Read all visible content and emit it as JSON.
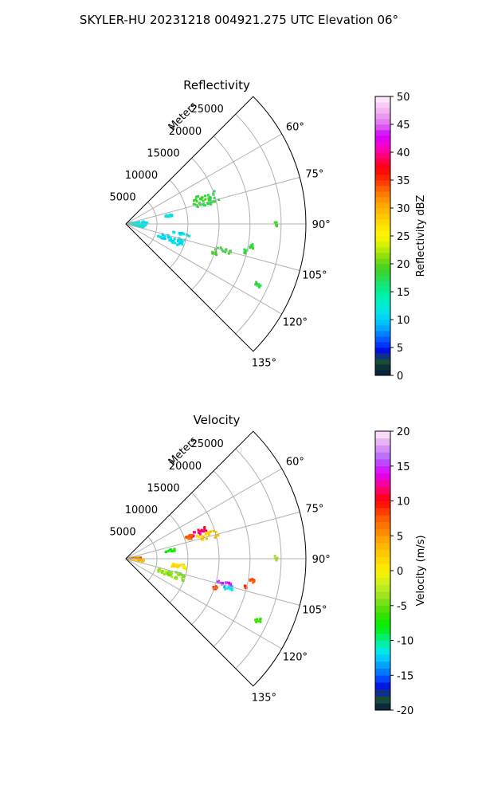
{
  "figure": {
    "title": "SKYLER-HU  20231218  004921.275 UTC Elevation 06°"
  },
  "chart_data": [
    {
      "type": "polar-sector",
      "title": "Reflectivity",
      "range_label": "Meters",
      "range_ticks": [
        5000,
        10000,
        15000,
        20000,
        25000
      ],
      "range_max": 29000,
      "azimuth_range_deg": [
        45,
        135
      ],
      "azimuth_ticks": [
        60,
        75,
        90,
        105,
        120,
        135
      ],
      "azimuth_tick_labels": [
        "60°",
        "75°",
        "90°",
        "105°",
        "120°",
        "135°"
      ],
      "grid": true,
      "colorbar": {
        "label": "Reflectivity dBZ",
        "min": 0,
        "max": 50,
        "step": 1,
        "ticks": [
          0,
          5,
          10,
          15,
          20,
          25,
          30,
          35,
          40,
          45,
          50
        ],
        "colormap": "NWSRef-like"
      },
      "echoes": [
        {
          "az": [
            69,
            77
          ],
          "r": [
            11000,
            15500
          ],
          "value": 18,
          "color": "#4cdb1e"
        },
        {
          "az": [
            78,
            81
          ],
          "r": [
            6500,
            8000
          ],
          "value": 11,
          "color": "#19c8e6"
        },
        {
          "az": [
            80,
            100
          ],
          "r": [
            200,
            3500
          ],
          "value": 12,
          "color": "#20d6e8"
        },
        {
          "az": [
            99,
            101
          ],
          "r": [
            7500,
            10500
          ],
          "value": 11,
          "color": "#2ad2f0"
        },
        {
          "az": [
            105,
            112
          ],
          "r": [
            5500,
            10000
          ],
          "value": 11,
          "color": "#20c4e8"
        },
        {
          "az": [
            104,
            106
          ],
          "r": [
            15000,
            17500
          ],
          "value": 18,
          "color": "#3bd42a"
        },
        {
          "az": [
            107,
            109
          ],
          "r": [
            14500,
            15500
          ],
          "value": 18,
          "color": "#3bd42a"
        },
        {
          "az": [
            99,
            101
          ],
          "r": [
            20300,
            21000
          ],
          "value": 18,
          "color": "#3bd42a"
        },
        {
          "az": [
            102,
            104
          ],
          "r": [
            19500,
            20000
          ],
          "value": 18,
          "color": "#3bd42a"
        },
        {
          "az": [
            89,
            91
          ],
          "r": [
            24000,
            24400
          ],
          "value": 18,
          "color": "#3bd42a"
        },
        {
          "az": [
            114,
            116
          ],
          "r": [
            23000,
            24000
          ],
          "value": 18,
          "color": "#3bd42a"
        }
      ]
    },
    {
      "type": "polar-sector",
      "title": "Velocity",
      "range_label": "Meters",
      "range_ticks": [
        5000,
        10000,
        15000,
        20000,
        25000
      ],
      "range_max": 29000,
      "azimuth_range_deg": [
        45,
        135
      ],
      "azimuth_ticks": [
        60,
        75,
        90,
        105,
        120,
        135
      ],
      "azimuth_tick_labels": [
        "60°",
        "75°",
        "90°",
        "105°",
        "120°",
        "135°"
      ],
      "grid": true,
      "colorbar": {
        "label": "Velocity (m/s)",
        "min": -20,
        "max": 20,
        "step": 1,
        "ticks": [
          -20,
          -15,
          -10,
          -5,
          0,
          5,
          10,
          15,
          20
        ],
        "colormap": "NWSVel-like"
      },
      "echoes": [
        {
          "az": [
            68,
            72
          ],
          "r": [
            11000,
            14000
          ],
          "value": 12,
          "color": "#ff1486"
        },
        {
          "az": [
            72,
            77
          ],
          "r": [
            12000,
            15500
          ],
          "value": 2,
          "color": "#ffd200"
        },
        {
          "az": [
            70,
            74
          ],
          "r": [
            10000,
            11500
          ],
          "value": 8,
          "color": "#ff5000"
        },
        {
          "az": [
            78,
            81
          ],
          "r": [
            6500,
            8000
          ],
          "value": -8,
          "color": "#2cd940"
        },
        {
          "az": [
            80,
            86
          ],
          "r": [
            200,
            2500
          ],
          "value": -3,
          "color": "#a8e820"
        },
        {
          "az": [
            86,
            94
          ],
          "r": [
            200,
            2500
          ],
          "value": 8,
          "color": "#ff4c80"
        },
        {
          "az": [
            94,
            100
          ],
          "r": [
            200,
            3000
          ],
          "value": 3,
          "color": "#ffb800"
        },
        {
          "az": [
            96,
            100
          ],
          "r": [
            7500,
            10500
          ],
          "value": 1,
          "color": "#ffe000"
        },
        {
          "az": [
            105,
            112
          ],
          "r": [
            5500,
            10000
          ],
          "value": -4,
          "color": "#8ce020"
        },
        {
          "az": [
            103,
            106
          ],
          "r": [
            15000,
            17500
          ],
          "value": 15,
          "color": "#d010d0"
        },
        {
          "az": [
            104,
            107
          ],
          "r": [
            16500,
            18000
          ],
          "value": -12,
          "color": "#16d6ea"
        },
        {
          "az": [
            107,
            109
          ],
          "r": [
            14500,
            15500
          ],
          "value": 8,
          "color": "#ff6000"
        },
        {
          "az": [
            99,
            101
          ],
          "r": [
            20300,
            21000
          ],
          "value": 8,
          "color": "#ff3000"
        },
        {
          "az": [
            102,
            104
          ],
          "r": [
            19500,
            20000
          ],
          "value": 8,
          "color": "#ff3000"
        },
        {
          "az": [
            89,
            91
          ],
          "r": [
            24000,
            24400
          ],
          "value": -3,
          "color": "#a8e820"
        },
        {
          "az": [
            114,
            116
          ],
          "r": [
            23000,
            24000
          ],
          "value": -6,
          "color": "#3ee020"
        }
      ]
    }
  ]
}
